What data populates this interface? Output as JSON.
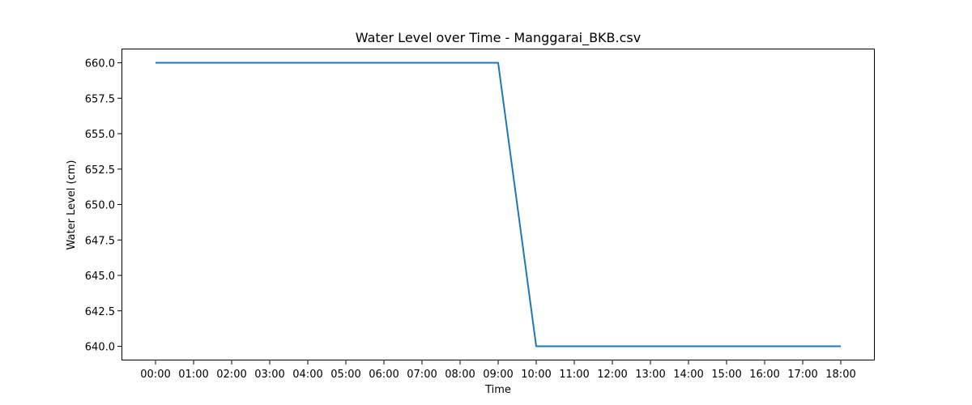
{
  "chart_data": {
    "type": "line",
    "title": "Water Level over Time - Manggarai_BKB.csv",
    "xlabel": "Time",
    "ylabel": "Water Level (cm)",
    "x": [
      "00:00",
      "01:00",
      "02:00",
      "03:00",
      "04:00",
      "05:00",
      "06:00",
      "07:00",
      "08:00",
      "09:00",
      "10:00",
      "11:00",
      "12:00",
      "13:00",
      "14:00",
      "15:00",
      "16:00",
      "17:00",
      "18:00"
    ],
    "series": [
      {
        "values": [
          660,
          660,
          660,
          660,
          660,
          660,
          660,
          660,
          660,
          660,
          640,
          640,
          640,
          640,
          640,
          640,
          640,
          640,
          640
        ],
        "color": "#1f77b4"
      }
    ],
    "yticks": [
      "640.0",
      "642.5",
      "645.0",
      "647.5",
      "650.0",
      "652.5",
      "655.0",
      "657.5",
      "660.0"
    ],
    "ylim": [
      639,
      661
    ],
    "grid": false,
    "legend": "none"
  }
}
